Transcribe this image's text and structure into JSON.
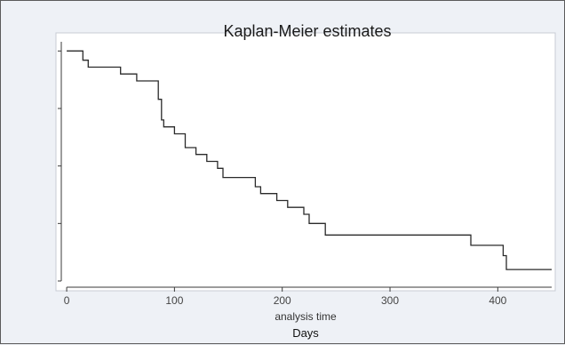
{
  "chart_data": {
    "type": "line",
    "title": "Kaplan-Meier estimates",
    "xlabel": "analysis time",
    "caption": "Days",
    "xlim": [
      -5,
      450
    ],
    "ylim": [
      0,
      1.04
    ],
    "x_ticks": [
      0,
      100,
      200,
      300,
      400
    ],
    "y_ticks": [
      0,
      0.25,
      0.5,
      0.75,
      1.0
    ],
    "grid": false,
    "series": [
      {
        "step": true,
        "x": [
          0,
          15,
          20,
          50,
          65,
          85,
          88,
          90,
          100,
          110,
          120,
          130,
          140,
          145,
          175,
          180,
          195,
          205,
          220,
          225,
          240,
          375,
          405,
          408,
          450
        ],
        "y": [
          1.0,
          0.96,
          0.93,
          0.9,
          0.87,
          0.79,
          0.7,
          0.67,
          0.64,
          0.58,
          0.55,
          0.52,
          0.49,
          0.45,
          0.41,
          0.38,
          0.35,
          0.32,
          0.29,
          0.25,
          0.2,
          0.155,
          0.11,
          0.05,
          0.05
        ]
      }
    ],
    "colors": {
      "line": "#2a2a2a",
      "axis": "#3a3a3a",
      "plot_bg": "#ffffff",
      "page_bg": "#eef1f6"
    }
  }
}
